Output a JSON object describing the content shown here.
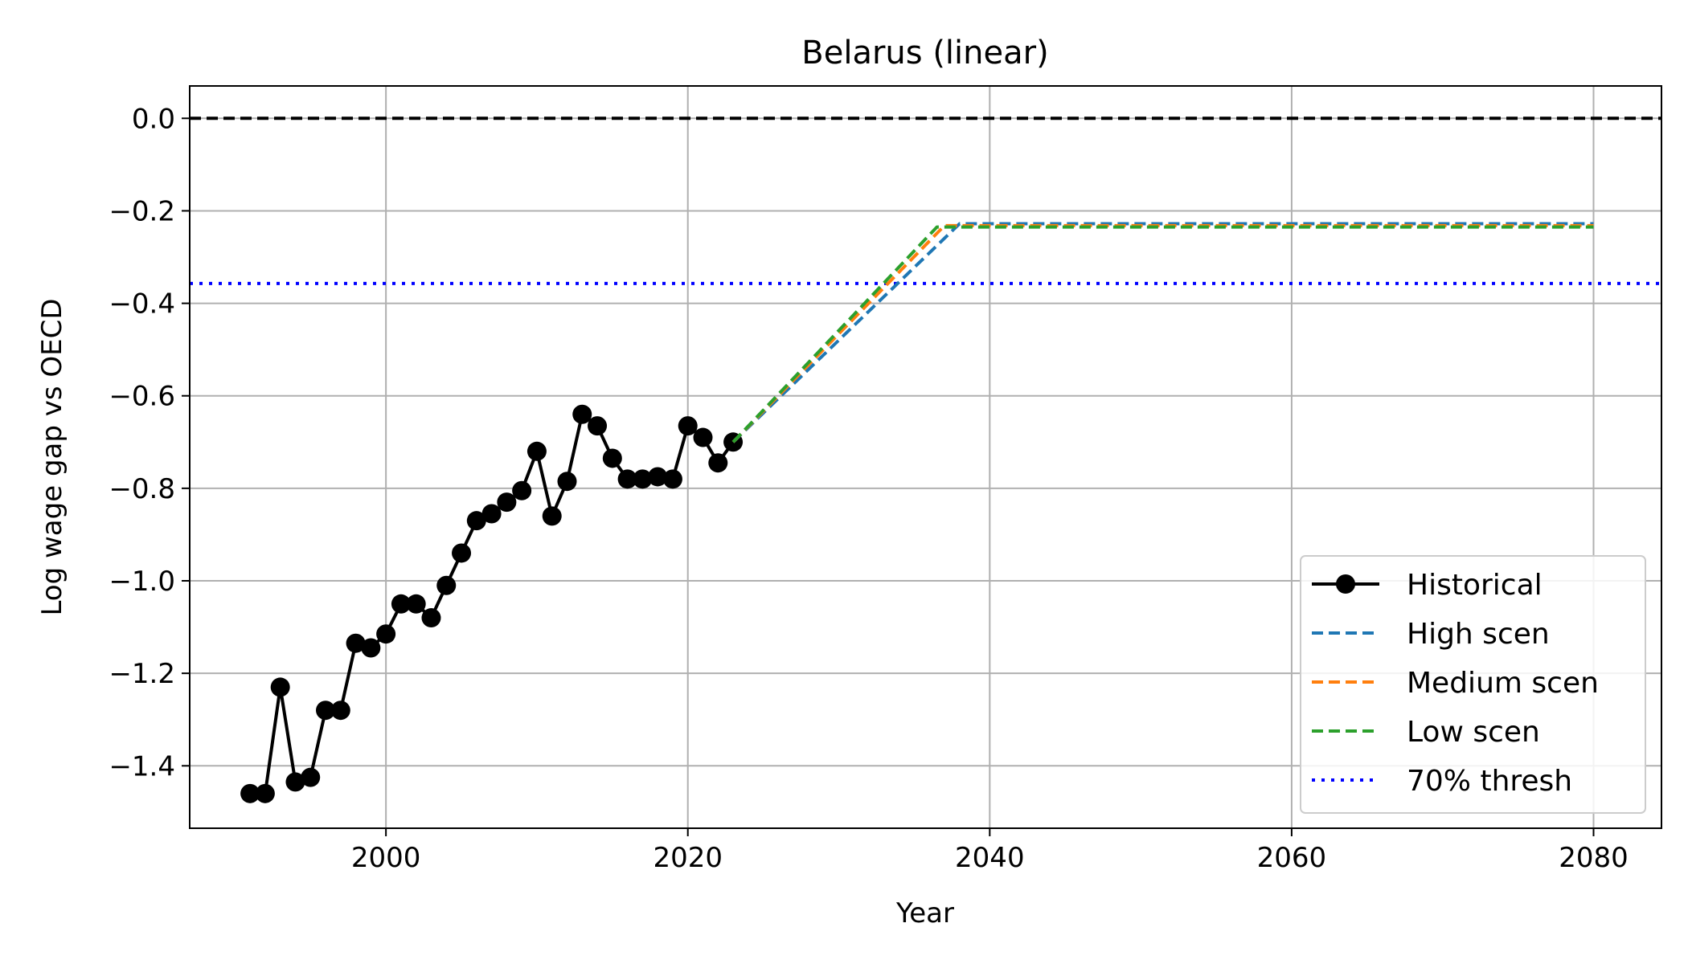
{
  "chart_data": {
    "type": "line",
    "title": "Belarus (linear)",
    "xlabel": "Year",
    "ylabel": "Log wage gap vs OECD",
    "xlim": [
      1987,
      2084.5
    ],
    "ylim": [
      -1.535,
      0.07
    ],
    "xticks": [
      2000,
      2020,
      2040,
      2060,
      2080
    ],
    "xtick_labels": [
      "2000",
      "2020",
      "2040",
      "2060",
      "2080"
    ],
    "yticks": [
      0.0,
      -0.2,
      -0.4,
      -0.6,
      -0.8,
      -1.0,
      -1.2,
      -1.4
    ],
    "ytick_labels": [
      "0.0",
      "−0.2",
      "−0.4",
      "−0.6",
      "−0.8",
      "−1.0",
      "−1.2",
      "−1.4"
    ],
    "grid": true,
    "legend_position": "lower-right",
    "reference_lines": [
      {
        "name": "",
        "y": 0.0,
        "color": "#000000",
        "style": "dashed"
      },
      {
        "name": "70% thresh",
        "y": -0.357,
        "color": "#0000ff",
        "style": "dotted"
      }
    ],
    "series": [
      {
        "name": "Historical",
        "color": "#000000",
        "style": "solid-marker",
        "x": [
          1991,
          1992,
          1993,
          1994,
          1995,
          1996,
          1997,
          1998,
          1999,
          2000,
          2001,
          2002,
          2003,
          2004,
          2005,
          2006,
          2007,
          2008,
          2009,
          2010,
          2011,
          2012,
          2013,
          2014,
          2015,
          2016,
          2017,
          2018,
          2019,
          2020,
          2021,
          2022,
          2023
        ],
        "y": [
          -1.46,
          -1.46,
          -1.23,
          -1.435,
          -1.425,
          -1.28,
          -1.28,
          -1.135,
          -1.145,
          -1.115,
          -1.05,
          -1.05,
          -1.08,
          -1.01,
          -0.94,
          -0.87,
          -0.855,
          -0.83,
          -0.805,
          -0.72,
          -0.86,
          -0.785,
          -0.64,
          -0.665,
          -0.735,
          -0.78,
          -0.78,
          -0.775,
          -0.78,
          -0.665,
          -0.69,
          -0.745,
          -0.7
        ]
      },
      {
        "name": "High scen",
        "color": "#1f77b4",
        "style": "dashed",
        "x": [
          2023,
          2038,
          2080
        ],
        "y": [
          -0.7,
          -0.228,
          -0.228
        ]
      },
      {
        "name": "Medium scen",
        "color": "#ff7f0e",
        "style": "dashed",
        "x": [
          2023,
          2037,
          2080
        ],
        "y": [
          -0.7,
          -0.232,
          -0.232
        ]
      },
      {
        "name": "Low scen",
        "color": "#2ca02c",
        "style": "dashed",
        "x": [
          2023,
          2036.5,
          2080
        ],
        "y": [
          -0.7,
          -0.235,
          -0.235
        ]
      }
    ]
  }
}
